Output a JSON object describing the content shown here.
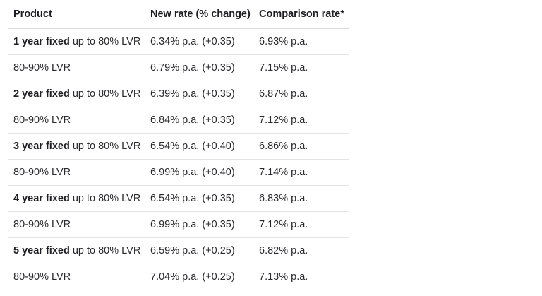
{
  "table": {
    "headers": {
      "product": "Product",
      "new_rate": "New rate (% change)",
      "comparison": "Comparison rate*"
    },
    "rows": [
      {
        "term": "1 year fixed",
        "product": " up to 80% LVR",
        "new_rate": "6.34% p.a. (+0.35)",
        "comparison": "6.93% p.a."
      },
      {
        "term": "",
        "product": "80-90% LVR",
        "new_rate": "6.79% p.a. (+0.35)",
        "comparison": "7.15% p.a."
      },
      {
        "term": "2 year fixed",
        "product": " up to 80% LVR",
        "new_rate": "6.39% p.a. (+0.35)",
        "comparison": "6.87% p.a."
      },
      {
        "term": "",
        "product": "80-90% LVR",
        "new_rate": "6.84% p.a. (+0.35)",
        "comparison": "7.12% p.a."
      },
      {
        "term": "3 year fixed",
        "product": " up to 80% LVR",
        "new_rate": "6.54% p.a. (+0.40)",
        "comparison": "6.86% p.a."
      },
      {
        "term": "",
        "product": "80-90% LVR",
        "new_rate": "6.99% p.a. (+0.40)",
        "comparison": "7.14% p.a."
      },
      {
        "term": "4 year fixed",
        "product": " up to 80% LVR",
        "new_rate": "6.54% p.a. (+0.35)",
        "comparison": "6.83% p.a."
      },
      {
        "term": "",
        "product": "80-90% LVR",
        "new_rate": "6.99% p.a. (+0.35)",
        "comparison": "7.12% p.a."
      },
      {
        "term": "5 year fixed",
        "product": " up to 80% LVR",
        "new_rate": "6.59% p.a. (+0.25)",
        "comparison": "6.82% p.a."
      },
      {
        "term": "",
        "product": "80-90% LVR",
        "new_rate": "7.04% p.a. (+0.25)",
        "comparison": "7.13% p.a."
      }
    ]
  }
}
